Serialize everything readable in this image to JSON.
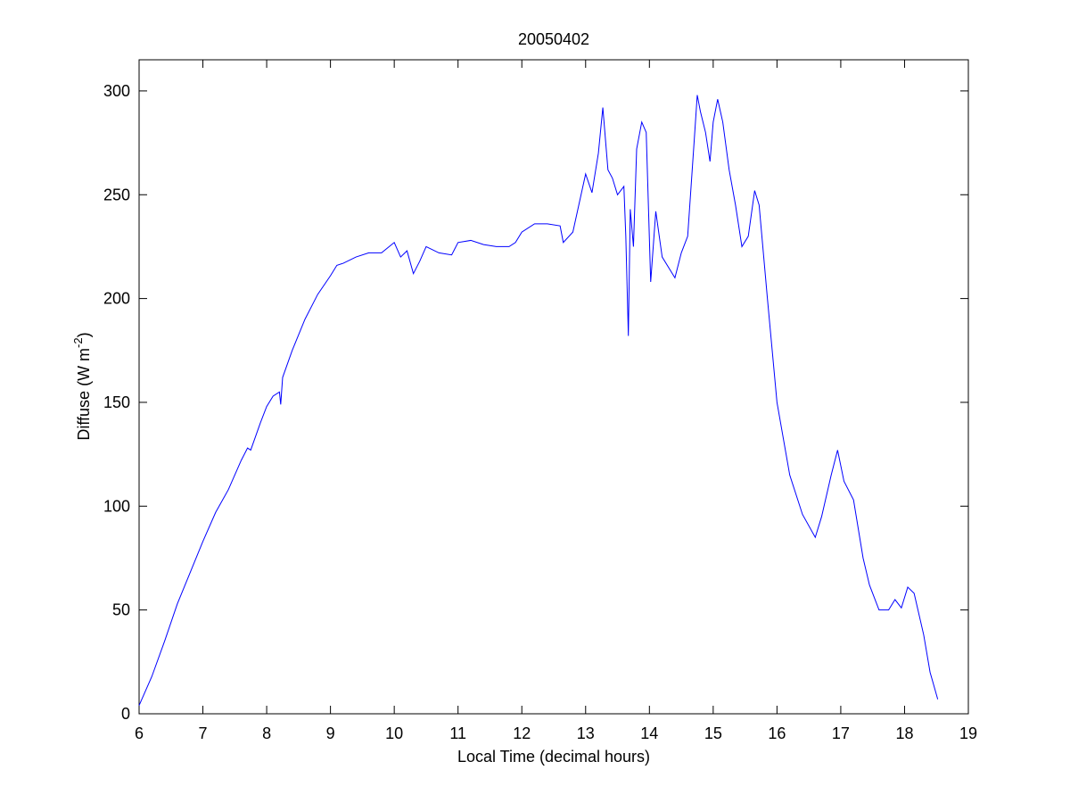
{
  "chart_data": {
    "type": "line",
    "title": "20050402",
    "xlabel": "Local Time (decimal hours)",
    "ylabel": {
      "text": "Diffuse (W m",
      "superscript": "-2",
      "suffix": ")"
    },
    "xlim": [
      6,
      19
    ],
    "ylim": [
      0,
      315
    ],
    "xticks": [
      6,
      7,
      8,
      9,
      10,
      11,
      12,
      13,
      14,
      15,
      16,
      17,
      18,
      19
    ],
    "yticks": [
      0,
      50,
      100,
      150,
      200,
      250,
      300
    ],
    "grid": false,
    "series": [
      {
        "color": "#0000ff",
        "x": [
          6.0,
          6.2,
          6.4,
          6.6,
          6.8,
          7.0,
          7.2,
          7.4,
          7.6,
          7.7,
          7.75,
          7.9,
          8.0,
          8.1,
          8.2,
          8.22,
          8.25,
          8.4,
          8.6,
          8.8,
          9.0,
          9.1,
          9.2,
          9.4,
          9.6,
          9.8,
          10.0,
          10.1,
          10.2,
          10.3,
          10.4,
          10.5,
          10.7,
          10.9,
          11.0,
          11.2,
          11.4,
          11.6,
          11.8,
          11.9,
          12.0,
          12.2,
          12.4,
          12.6,
          12.65,
          12.8,
          13.0,
          13.1,
          13.2,
          13.27,
          13.35,
          13.42,
          13.5,
          13.6,
          13.63,
          13.67,
          13.7,
          13.75,
          13.8,
          13.88,
          13.95,
          14.02,
          14.1,
          14.2,
          14.4,
          14.5,
          14.6,
          14.7,
          14.75,
          14.8,
          14.88,
          14.95,
          15.0,
          15.07,
          15.15,
          15.25,
          15.35,
          15.45,
          15.55,
          15.65,
          15.72,
          15.85,
          16.0,
          16.2,
          16.4,
          16.6,
          16.7,
          16.85,
          16.95,
          17.05,
          17.2,
          17.35,
          17.45,
          17.6,
          17.75,
          17.85,
          17.95,
          18.05,
          18.15,
          18.3,
          18.4,
          18.52
        ],
        "values": [
          4,
          18,
          35,
          53,
          68,
          83,
          97,
          108,
          122,
          128,
          127,
          140,
          148,
          153,
          155,
          149,
          162,
          175,
          190,
          202,
          211,
          216,
          217,
          220,
          222,
          222,
          227,
          220,
          223,
          212,
          218,
          225,
          222,
          221,
          227,
          228,
          226,
          225,
          225,
          227,
          232,
          236,
          236,
          235,
          227,
          232,
          260,
          251,
          270,
          292,
          262,
          258,
          250,
          254,
          230,
          182,
          243,
          225,
          272,
          285,
          280,
          208,
          242,
          220,
          210,
          222,
          230,
          275,
          298,
          290,
          280,
          266,
          285,
          296,
          285,
          262,
          245,
          225,
          230,
          252,
          245,
          200,
          150,
          115,
          96,
          85,
          95,
          115,
          127,
          112,
          103,
          75,
          62,
          50,
          50,
          55,
          51,
          61,
          58,
          38,
          20,
          7
        ]
      }
    ]
  }
}
